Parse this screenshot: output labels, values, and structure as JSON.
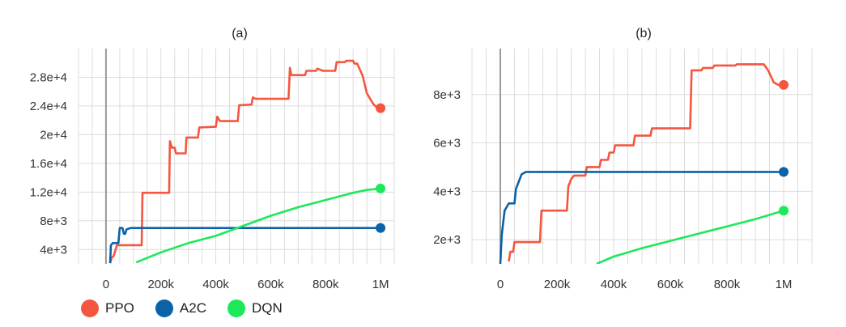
{
  "legend": [
    {
      "name": "PPO",
      "color": "#f4563f"
    },
    {
      "name": "A2C",
      "color": "#0b62a6"
    },
    {
      "name": "DQN",
      "color": "#1de85a"
    }
  ],
  "chart_data": [
    {
      "type": "line",
      "title": "(a)",
      "xlabel": "",
      "ylabel": "",
      "xlim": [
        -100000,
        1050000
      ],
      "ylim": [
        2000,
        32000
      ],
      "x_ticks": [
        0,
        200000,
        400000,
        600000,
        800000,
        1000000
      ],
      "x_tick_labels": [
        "0",
        "200k",
        "400k",
        "600k",
        "800k",
        "1M"
      ],
      "y_ticks": [
        4000,
        8000,
        12000,
        16000,
        20000,
        24000,
        28000
      ],
      "y_tick_labels": [
        "4e+3",
        "8e+3",
        "1.2e+4",
        "1.6e+4",
        "2e+4",
        "2.4e+4",
        "2.8e+4"
      ],
      "grid": true,
      "legend_position": "bottom-left",
      "series": [
        {
          "name": "PPO",
          "color": "#f4563f",
          "points": [
            [
              15000,
              2100
            ],
            [
              20000,
              2800
            ],
            [
              28000,
              3100
            ],
            [
              40000,
              4600
            ],
            [
              130000,
              4600
            ],
            [
              133000,
              11900
            ],
            [
              230000,
              11900
            ],
            [
              233000,
              19100
            ],
            [
              240000,
              18200
            ],
            [
              250000,
              18200
            ],
            [
              255000,
              17400
            ],
            [
              290000,
              17400
            ],
            [
              293000,
              19600
            ],
            [
              335000,
              19600
            ],
            [
              340000,
              21000
            ],
            [
              400000,
              21100
            ],
            [
              405000,
              22500
            ],
            [
              415000,
              21900
            ],
            [
              480000,
              21900
            ],
            [
              485000,
              24100
            ],
            [
              530000,
              24200
            ],
            [
              535000,
              25200
            ],
            [
              545000,
              25000
            ],
            [
              665000,
              25000
            ],
            [
              670000,
              29300
            ],
            [
              675000,
              28300
            ],
            [
              725000,
              28300
            ],
            [
              730000,
              28900
            ],
            [
              765000,
              28900
            ],
            [
              770000,
              29200
            ],
            [
              790000,
              28900
            ],
            [
              835000,
              28900
            ],
            [
              840000,
              30100
            ],
            [
              870000,
              30100
            ],
            [
              875000,
              30300
            ],
            [
              900000,
              30300
            ],
            [
              905000,
              29900
            ],
            [
              915000,
              29900
            ],
            [
              935000,
              28200
            ],
            [
              950000,
              25800
            ],
            [
              965000,
              24800
            ],
            [
              975000,
              24200
            ],
            [
              990000,
              23700
            ],
            [
              1000000,
              23700
            ]
          ]
        },
        {
          "name": "A2C",
          "color": "#0b62a6",
          "points": [
            [
              15000,
              2100
            ],
            [
              18000,
              4600
            ],
            [
              25000,
              4900
            ],
            [
              45000,
              4900
            ],
            [
              50000,
              7000
            ],
            [
              60000,
              7000
            ],
            [
              65000,
              6200
            ],
            [
              70000,
              6200
            ],
            [
              75000,
              6800
            ],
            [
              90000,
              7000
            ],
            [
              1000000,
              7000
            ]
          ]
        },
        {
          "name": "DQN",
          "color": "#1de85a",
          "points": [
            [
              110000,
              2200
            ],
            [
              200000,
              3600
            ],
            [
              300000,
              4900
            ],
            [
              400000,
              5900
            ],
            [
              500000,
              7300
            ],
            [
              600000,
              8700
            ],
            [
              700000,
              9900
            ],
            [
              800000,
              10900
            ],
            [
              900000,
              11900
            ],
            [
              950000,
              12300
            ],
            [
              1000000,
              12500
            ]
          ]
        }
      ]
    },
    {
      "type": "line",
      "title": "(b)",
      "xlabel": "",
      "ylabel": "",
      "xlim": [
        -100000,
        1100000
      ],
      "ylim": [
        1000,
        9900
      ],
      "x_ticks": [
        0,
        200000,
        400000,
        600000,
        800000,
        1000000
      ],
      "x_tick_labels": [
        "0",
        "200k",
        "400k",
        "600k",
        "800k",
        "1M"
      ],
      "y_ticks": [
        2000,
        4000,
        6000,
        8000
      ],
      "y_tick_labels": [
        "2e+3",
        "4e+3",
        "6e+3",
        "8e+3"
      ],
      "grid": true,
      "series": [
        {
          "name": "PPO",
          "color": "#f4563f",
          "points": [
            [
              30000,
              1100
            ],
            [
              35000,
              1500
            ],
            [
              45000,
              1500
            ],
            [
              50000,
              1900
            ],
            [
              140000,
              1900
            ],
            [
              145000,
              3200
            ],
            [
              235000,
              3200
            ],
            [
              240000,
              4200
            ],
            [
              250000,
              4500
            ],
            [
              260000,
              4650
            ],
            [
              300000,
              4650
            ],
            [
              305000,
              5000
            ],
            [
              350000,
              5000
            ],
            [
              355000,
              5300
            ],
            [
              380000,
              5300
            ],
            [
              385000,
              5600
            ],
            [
              400000,
              5600
            ],
            [
              405000,
              5900
            ],
            [
              470000,
              5900
            ],
            [
              475000,
              6300
            ],
            [
              530000,
              6300
            ],
            [
              535000,
              6600
            ],
            [
              670000,
              6600
            ],
            [
              675000,
              9000
            ],
            [
              710000,
              9000
            ],
            [
              715000,
              9100
            ],
            [
              750000,
              9100
            ],
            [
              755000,
              9200
            ],
            [
              830000,
              9200
            ],
            [
              835000,
              9250
            ],
            [
              930000,
              9250
            ],
            [
              945000,
              9000
            ],
            [
              965000,
              8500
            ],
            [
              980000,
              8400
            ],
            [
              1000000,
              8400
            ]
          ]
        },
        {
          "name": "A2C",
          "color": "#0b62a6",
          "points": [
            [
              0,
              1000
            ],
            [
              5000,
              2200
            ],
            [
              15000,
              3200
            ],
            [
              30000,
              3500
            ],
            [
              50000,
              3500
            ],
            [
              55000,
              4100
            ],
            [
              65000,
              4400
            ],
            [
              75000,
              4700
            ],
            [
              90000,
              4800
            ],
            [
              1000000,
              4800
            ]
          ]
        },
        {
          "name": "DQN",
          "color": "#1de85a",
          "points": [
            [
              340000,
              1000
            ],
            [
              400000,
              1300
            ],
            [
              500000,
              1650
            ],
            [
              600000,
              1950
            ],
            [
              700000,
              2250
            ],
            [
              800000,
              2550
            ],
            [
              900000,
              2850
            ],
            [
              1000000,
              3200
            ]
          ]
        }
      ]
    }
  ]
}
